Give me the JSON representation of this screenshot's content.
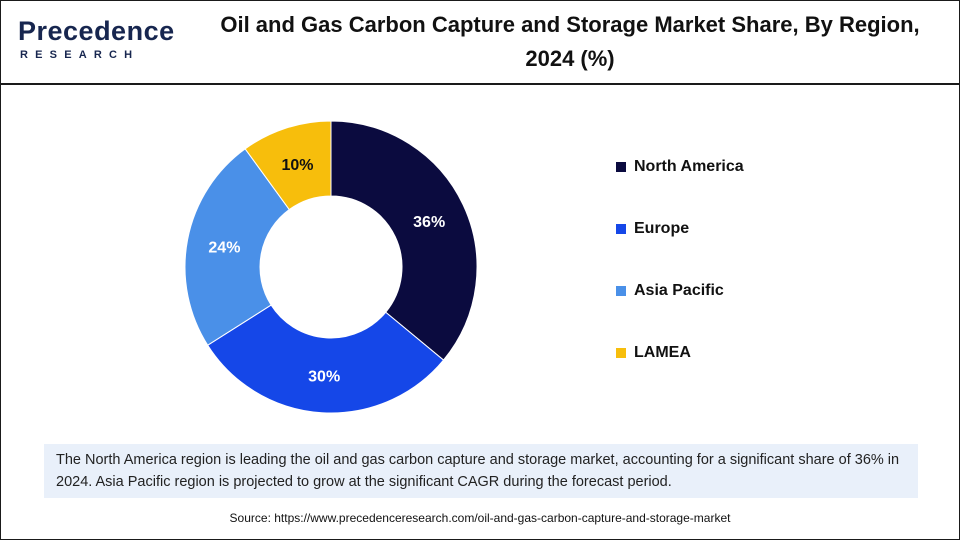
{
  "header": {
    "logo_word": "Precedence",
    "logo_sub": "RESEARCH",
    "title": "Oil and Gas Carbon Capture and Storage Market Share, By Region, 2024 (%)"
  },
  "colors": {
    "north_america": "#0b0b3f",
    "europe": "#1547e8",
    "asia_pacific": "#4a90e8",
    "lamea": "#f7be0c",
    "note_bg": "#e9f0fa"
  },
  "chart_data": {
    "type": "pie",
    "donut": true,
    "title": "Oil and Gas Carbon Capture and Storage Market Share, By Region, 2024 (%)",
    "unit": "%",
    "legend_position": "right",
    "slices": [
      {
        "label": "North America",
        "value": 36,
        "display": "36%",
        "color": "#0b0b3f"
      },
      {
        "label": "Europe",
        "value": 30,
        "display": "30%",
        "color": "#1547e8"
      },
      {
        "label": "Asia Pacific",
        "value": 24,
        "display": "24%",
        "color": "#4a90e8"
      },
      {
        "label": "LAMEA",
        "value": 10,
        "display": "10%",
        "color": "#f7be0c"
      }
    ]
  },
  "note": {
    "text": "The North America region is leading the oil and gas carbon capture and storage market, accounting for a significant share of 36% in 2024. Asia Pacific region is projected to grow at the significant CAGR during the forecast period."
  },
  "source": {
    "text": "Source: https://www.precedenceresearch.com/oil-and-gas-carbon-capture-and-storage-market"
  }
}
